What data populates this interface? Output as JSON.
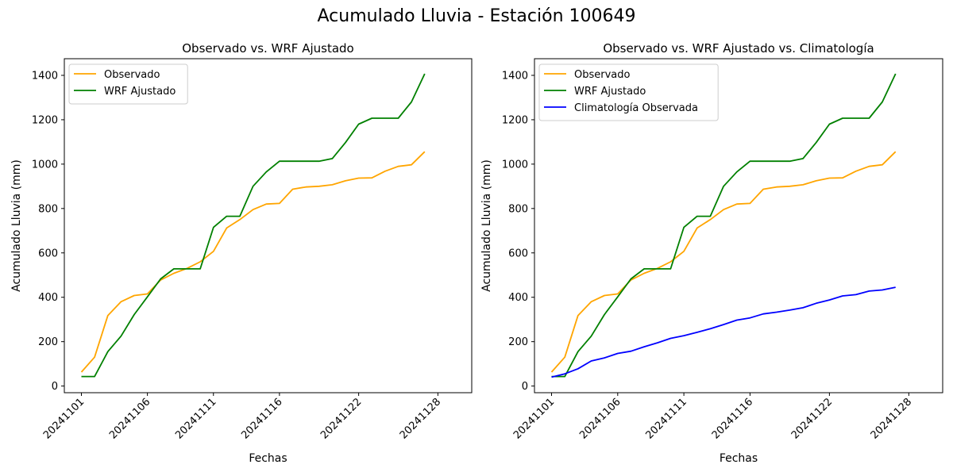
{
  "figure": {
    "title": "Acumulado Lluvia - Estación 100649"
  },
  "chart_data": [
    {
      "type": "line",
      "title": "Observado vs. WRF Ajustado",
      "xlabel": "Fechas",
      "ylabel": "Acumulado Lluvia (mm)",
      "ylim": [
        -30,
        1475
      ],
      "yticks": [
        0,
        200,
        400,
        600,
        800,
        1000,
        1200,
        1400
      ],
      "x": [
        "20241101",
        "20241102",
        "20241103",
        "20241104",
        "20241105",
        "20241106",
        "20241107",
        "20241108",
        "20241109",
        "20241110",
        "20241111",
        "20241112",
        "20241113",
        "20241114",
        "20241115",
        "20241116",
        "20241117",
        "20241118",
        "20241119",
        "20241120",
        "20241121",
        "20241122",
        "20241123",
        "20241124",
        "20241125",
        "20241126",
        "20241127",
        "20241128",
        "20241129"
      ],
      "xticks": [
        "20241101",
        "20241106",
        "20241111",
        "20241116",
        "20241122",
        "20241128"
      ],
      "legend_position": "top-left",
      "grid": false,
      "series": [
        {
          "name": "Observado",
          "color": "#ffa500",
          "values": [
            63,
            130,
            318,
            380,
            408,
            415,
            478,
            508,
            530,
            560,
            607,
            712,
            750,
            795,
            820,
            823,
            887,
            897,
            900,
            907,
            925,
            937,
            938,
            968,
            990,
            997,
            1056,
            null,
            null
          ]
        },
        {
          "name": "WRF Ajustado",
          "color": "#008000",
          "values": [
            43,
            43,
            155,
            225,
            322,
            402,
            483,
            528,
            528,
            528,
            715,
            765,
            765,
            900,
            965,
            1013,
            1013,
            1013,
            1013,
            1025,
            1097,
            1180,
            1207,
            1207,
            1207,
            1280,
            1407,
            null,
            null
          ]
        }
      ]
    },
    {
      "type": "line",
      "title": "Observado vs. WRF Ajustado vs. Climatología",
      "xlabel": "Fechas",
      "ylabel": "Acumulado Lluvia (mm)",
      "ylim": [
        -30,
        1475
      ],
      "yticks": [
        0,
        200,
        400,
        600,
        800,
        1000,
        1200,
        1400
      ],
      "x": [
        "20241101",
        "20241102",
        "20241103",
        "20241104",
        "20241105",
        "20241106",
        "20241107",
        "20241108",
        "20241109",
        "20241110",
        "20241111",
        "20241112",
        "20241113",
        "20241114",
        "20241115",
        "20241116",
        "20241117",
        "20241118",
        "20241119",
        "20241120",
        "20241121",
        "20241122",
        "20241123",
        "20241124",
        "20241125",
        "20241126",
        "20241127",
        "20241128",
        "20241129"
      ],
      "xticks": [
        "20241101",
        "20241106",
        "20241111",
        "20241116",
        "20241122",
        "20241128"
      ],
      "legend_position": "top-left",
      "grid": false,
      "series": [
        {
          "name": "Observado",
          "color": "#ffa500",
          "values": [
            63,
            130,
            318,
            380,
            408,
            415,
            478,
            508,
            530,
            560,
            607,
            712,
            750,
            795,
            820,
            823,
            887,
            897,
            900,
            907,
            925,
            937,
            938,
            968,
            990,
            997,
            1056,
            null,
            null
          ]
        },
        {
          "name": "WRF Ajustado",
          "color": "#008000",
          "values": [
            43,
            43,
            155,
            225,
            322,
            402,
            483,
            528,
            528,
            528,
            715,
            765,
            765,
            900,
            965,
            1013,
            1013,
            1013,
            1013,
            1025,
            1097,
            1180,
            1207,
            1207,
            1207,
            1280,
            1407,
            null,
            null
          ]
        },
        {
          "name": "Climatología Observada",
          "color": "#0000ff",
          "values": [
            40,
            55,
            78,
            113,
            127,
            147,
            157,
            177,
            195,
            215,
            227,
            242,
            258,
            277,
            297,
            307,
            325,
            333,
            342,
            353,
            373,
            388,
            406,
            412,
            428,
            433,
            445,
            null,
            null
          ]
        }
      ]
    }
  ]
}
